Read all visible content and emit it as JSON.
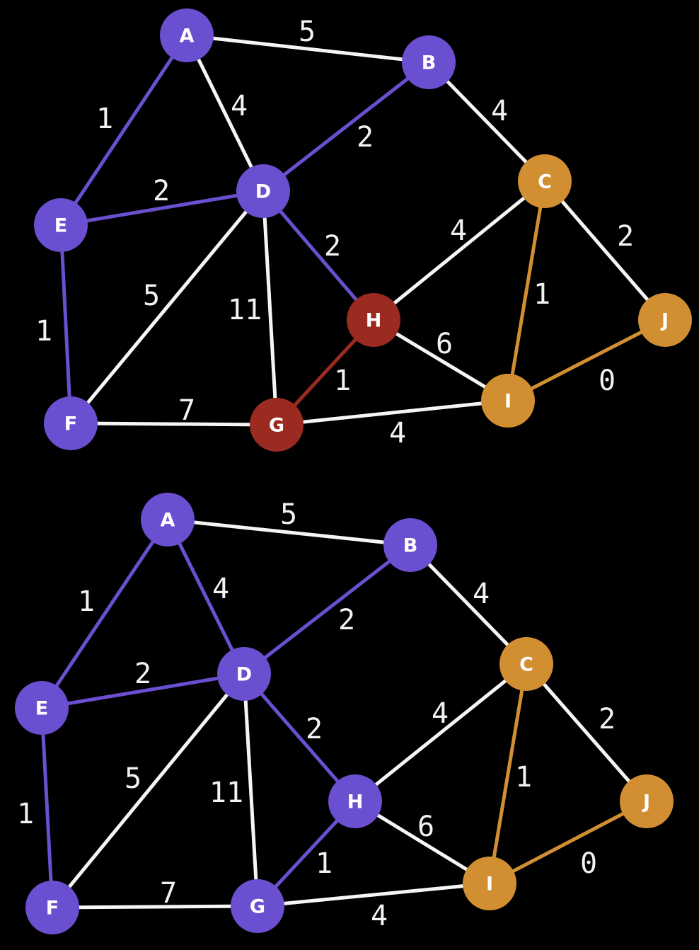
{
  "colors": {
    "background": "#000000",
    "default_edge": "#f5f5f5",
    "purple": "#6a4fd0",
    "red": "#9b2a20",
    "orange": "#d18f32"
  },
  "graphs": [
    {
      "nodes": [
        {
          "id": "A",
          "label": "A",
          "color": "purple"
        },
        {
          "id": "B",
          "label": "B",
          "color": "purple"
        },
        {
          "id": "C",
          "label": "C",
          "color": "orange"
        },
        {
          "id": "D",
          "label": "D",
          "color": "purple"
        },
        {
          "id": "E",
          "label": "E",
          "color": "purple"
        },
        {
          "id": "F",
          "label": "F",
          "color": "purple"
        },
        {
          "id": "G",
          "label": "G",
          "color": "red"
        },
        {
          "id": "H",
          "label": "H",
          "color": "red"
        },
        {
          "id": "I",
          "label": "I",
          "color": "orange"
        },
        {
          "id": "J",
          "label": "J",
          "color": "orange"
        }
      ],
      "edges": [
        {
          "from": "A",
          "to": "B",
          "weight": "5",
          "color": "default_edge"
        },
        {
          "from": "A",
          "to": "E",
          "weight": "1",
          "color": "purple"
        },
        {
          "from": "A",
          "to": "D",
          "weight": "4",
          "color": "default_edge"
        },
        {
          "from": "B",
          "to": "D",
          "weight": "2",
          "color": "purple"
        },
        {
          "from": "B",
          "to": "C",
          "weight": "4",
          "color": "default_edge"
        },
        {
          "from": "E",
          "to": "D",
          "weight": "2",
          "color": "purple"
        },
        {
          "from": "E",
          "to": "F",
          "weight": "1",
          "color": "purple"
        },
        {
          "from": "D",
          "to": "F",
          "weight": "5",
          "color": "default_edge"
        },
        {
          "from": "D",
          "to": "G",
          "weight": "11",
          "color": "default_edge"
        },
        {
          "from": "D",
          "to": "H",
          "weight": "2",
          "color": "purple"
        },
        {
          "from": "C",
          "to": "H",
          "weight": "4",
          "color": "default_edge"
        },
        {
          "from": "C",
          "to": "I",
          "weight": "1",
          "color": "orange"
        },
        {
          "from": "C",
          "to": "J",
          "weight": "2",
          "color": "default_edge"
        },
        {
          "from": "H",
          "to": "G",
          "weight": "1",
          "color": "red"
        },
        {
          "from": "H",
          "to": "I",
          "weight": "6",
          "color": "default_edge"
        },
        {
          "from": "F",
          "to": "G",
          "weight": "7",
          "color": "default_edge"
        },
        {
          "from": "G",
          "to": "I",
          "weight": "4",
          "color": "default_edge"
        },
        {
          "from": "I",
          "to": "J",
          "weight": "0",
          "color": "orange"
        }
      ]
    },
    {
      "nodes": [
        {
          "id": "A",
          "label": "A",
          "color": "purple"
        },
        {
          "id": "B",
          "label": "B",
          "color": "purple"
        },
        {
          "id": "C",
          "label": "C",
          "color": "orange"
        },
        {
          "id": "D",
          "label": "D",
          "color": "purple"
        },
        {
          "id": "E",
          "label": "E",
          "color": "purple"
        },
        {
          "id": "F",
          "label": "F",
          "color": "purple"
        },
        {
          "id": "G",
          "label": "G",
          "color": "purple"
        },
        {
          "id": "H",
          "label": "H",
          "color": "purple"
        },
        {
          "id": "I",
          "label": "I",
          "color": "orange"
        },
        {
          "id": "J",
          "label": "J",
          "color": "orange"
        }
      ],
      "edges": [
        {
          "from": "A",
          "to": "B",
          "weight": "5",
          "color": "default_edge"
        },
        {
          "from": "A",
          "to": "E",
          "weight": "1",
          "color": "purple"
        },
        {
          "from": "A",
          "to": "D",
          "weight": "4",
          "color": "purple"
        },
        {
          "from": "B",
          "to": "D",
          "weight": "2",
          "color": "purple"
        },
        {
          "from": "B",
          "to": "C",
          "weight": "4",
          "color": "default_edge"
        },
        {
          "from": "E",
          "to": "D",
          "weight": "2",
          "color": "purple"
        },
        {
          "from": "E",
          "to": "F",
          "weight": "1",
          "color": "purple"
        },
        {
          "from": "D",
          "to": "F",
          "weight": "5",
          "color": "default_edge"
        },
        {
          "from": "D",
          "to": "G",
          "weight": "11",
          "color": "default_edge"
        },
        {
          "from": "D",
          "to": "H",
          "weight": "2",
          "color": "purple"
        },
        {
          "from": "C",
          "to": "H",
          "weight": "4",
          "color": "default_edge"
        },
        {
          "from": "C",
          "to": "I",
          "weight": "1",
          "color": "orange"
        },
        {
          "from": "C",
          "to": "J",
          "weight": "2",
          "color": "default_edge"
        },
        {
          "from": "H",
          "to": "G",
          "weight": "1",
          "color": "purple"
        },
        {
          "from": "H",
          "to": "I",
          "weight": "6",
          "color": "default_edge"
        },
        {
          "from": "F",
          "to": "G",
          "weight": "7",
          "color": "default_edge"
        },
        {
          "from": "G",
          "to": "I",
          "weight": "4",
          "color": "default_edge"
        },
        {
          "from": "I",
          "to": "J",
          "weight": "0",
          "color": "orange"
        }
      ]
    }
  ]
}
